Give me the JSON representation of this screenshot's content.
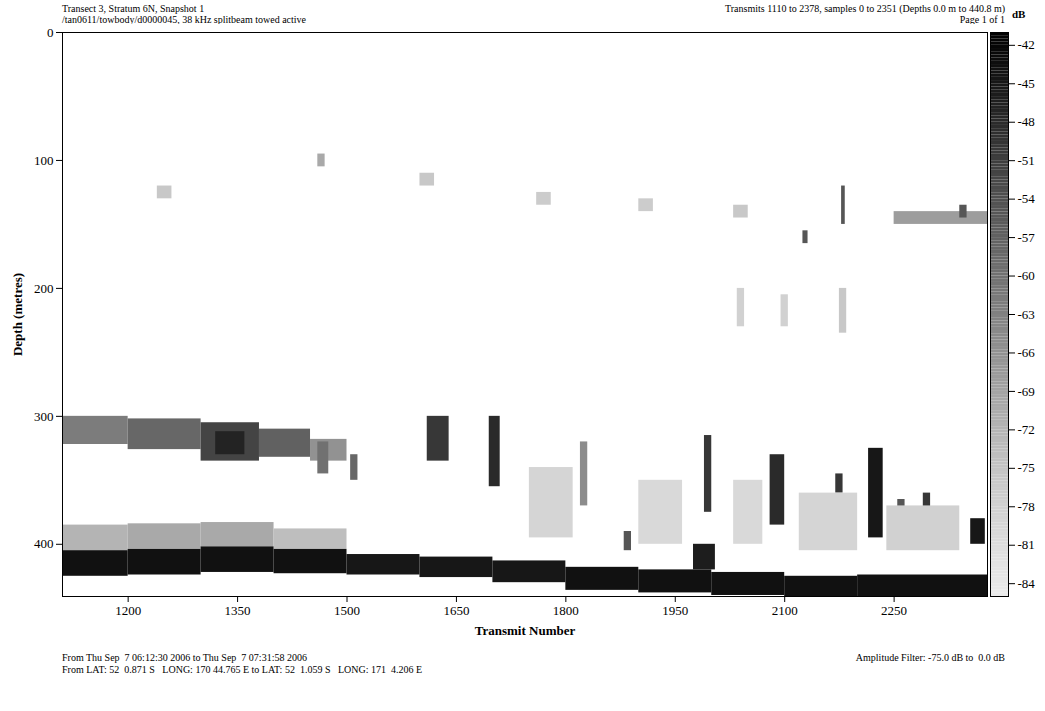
{
  "chart_data": {
    "type": "heatmap",
    "title": "Transect 3, Stratum 6N, Snapshot 1",
    "subtitle": "/tan0611/towbody/d0000045, 38 kHz splitbeam towed active",
    "annotations": [
      "Transmits 1110 to 2378, samples 0 to 2351 (Depths 0.0 m to 440.8 m)",
      "Page 1 of 1",
      "From Thu Sep  7 06:12:30 2006 to Thu Sep  7 07:31:58 2006",
      "From LAT: 52  0.871 S   LONG: 170 44.765 E to LAT: 52  1.059 S   LONG: 171  4.206 E",
      "Amplitude Filter: -75.0 dB to  0.0 dB"
    ],
    "x_label": "Transmit Number",
    "y_label": "Depth (metres)",
    "xlim": [
      1110,
      2378
    ],
    "xticks": [
      1200,
      1350,
      1500,
      1650,
      1800,
      1950,
      2100,
      2250
    ],
    "ylim": [
      0,
      440.8
    ],
    "yticks": [
      0,
      100,
      200,
      300,
      400
    ],
    "colorbar": {
      "label": "dB",
      "range": [
        -85,
        -41
      ],
      "ticks": [
        -42,
        -45,
        -48,
        -51,
        -54,
        -57,
        -60,
        -63,
        -66,
        -69,
        -72,
        -75,
        -78,
        -81,
        -84
      ]
    },
    "cells": [
      [
        1110,
        1200,
        385,
        405,
        -72
      ],
      [
        1200,
        1300,
        384,
        404,
        -70
      ],
      [
        1300,
        1400,
        383,
        402,
        -70
      ],
      [
        1400,
        1500,
        388,
        404,
        -74
      ],
      [
        1110,
        1200,
        405,
        425,
        -44
      ],
      [
        1200,
        1300,
        404,
        424,
        -44
      ],
      [
        1300,
        1400,
        402,
        422,
        -44
      ],
      [
        1400,
        1500,
        404,
        423,
        -44
      ],
      [
        1500,
        1600,
        408,
        424,
        -45
      ],
      [
        1600,
        1700,
        410,
        426,
        -45
      ],
      [
        1700,
        1800,
        413,
        430,
        -45
      ],
      [
        1800,
        1900,
        418,
        436,
        -44
      ],
      [
        1900,
        2000,
        420,
        438,
        -44
      ],
      [
        1975,
        2005,
        400,
        420,
        -46
      ],
      [
        2000,
        2100,
        422,
        440,
        -44
      ],
      [
        2100,
        2200,
        425,
        440.8,
        -44
      ],
      [
        2200,
        2378,
        424,
        440.8,
        -44
      ],
      [
        1110,
        1200,
        300,
        322,
        -62
      ],
      [
        1200,
        1300,
        302,
        326,
        -58
      ],
      [
        1300,
        1380,
        305,
        335,
        -52
      ],
      [
        1380,
        1450,
        310,
        332,
        -57
      ],
      [
        1320,
        1360,
        312,
        330,
        -47
      ],
      [
        1450,
        1500,
        318,
        335,
        -66
      ],
      [
        1460,
        1475,
        320,
        345,
        -60
      ],
      [
        1505,
        1515,
        330,
        350,
        -58
      ],
      [
        1610,
        1640,
        300,
        335,
        -50
      ],
      [
        1695,
        1710,
        300,
        355,
        -48
      ],
      [
        1820,
        1830,
        320,
        370,
        -65
      ],
      [
        1880,
        1890,
        390,
        405,
        -55
      ],
      [
        1990,
        2000,
        315,
        375,
        -50
      ],
      [
        2080,
        2100,
        330,
        385,
        -48
      ],
      [
        2170,
        2180,
        345,
        360,
        -50
      ],
      [
        2215,
        2235,
        325,
        395,
        -45
      ],
      [
        2255,
        2265,
        365,
        395,
        -55
      ],
      [
        2290,
        2300,
        360,
        385,
        -50
      ],
      [
        2355,
        2375,
        380,
        400,
        -45
      ],
      [
        1750,
        1810,
        340,
        395,
        -79
      ],
      [
        1900,
        1960,
        350,
        400,
        -80
      ],
      [
        2030,
        2070,
        350,
        400,
        -80
      ],
      [
        2120,
        2200,
        360,
        405,
        -79
      ],
      [
        2240,
        2340,
        370,
        405,
        -78
      ],
      [
        1460,
        1470,
        95,
        105,
        -70
      ],
      [
        1240,
        1260,
        120,
        130,
        -76
      ],
      [
        1600,
        1620,
        110,
        120,
        -76
      ],
      [
        1760,
        1780,
        125,
        135,
        -77
      ],
      [
        1900,
        1920,
        130,
        140,
        -77
      ],
      [
        2030,
        2050,
        135,
        145,
        -76
      ],
      [
        2125,
        2132,
        155,
        165,
        -55
      ],
      [
        2178,
        2183,
        120,
        150,
        -55
      ],
      [
        2250,
        2378,
        140,
        150,
        -68
      ],
      [
        2340,
        2350,
        135,
        145,
        -55
      ],
      [
        2035,
        2045,
        200,
        230,
        -78
      ],
      [
        2095,
        2105,
        205,
        230,
        -78
      ],
      [
        2175,
        2185,
        200,
        235,
        -76
      ]
    ]
  }
}
